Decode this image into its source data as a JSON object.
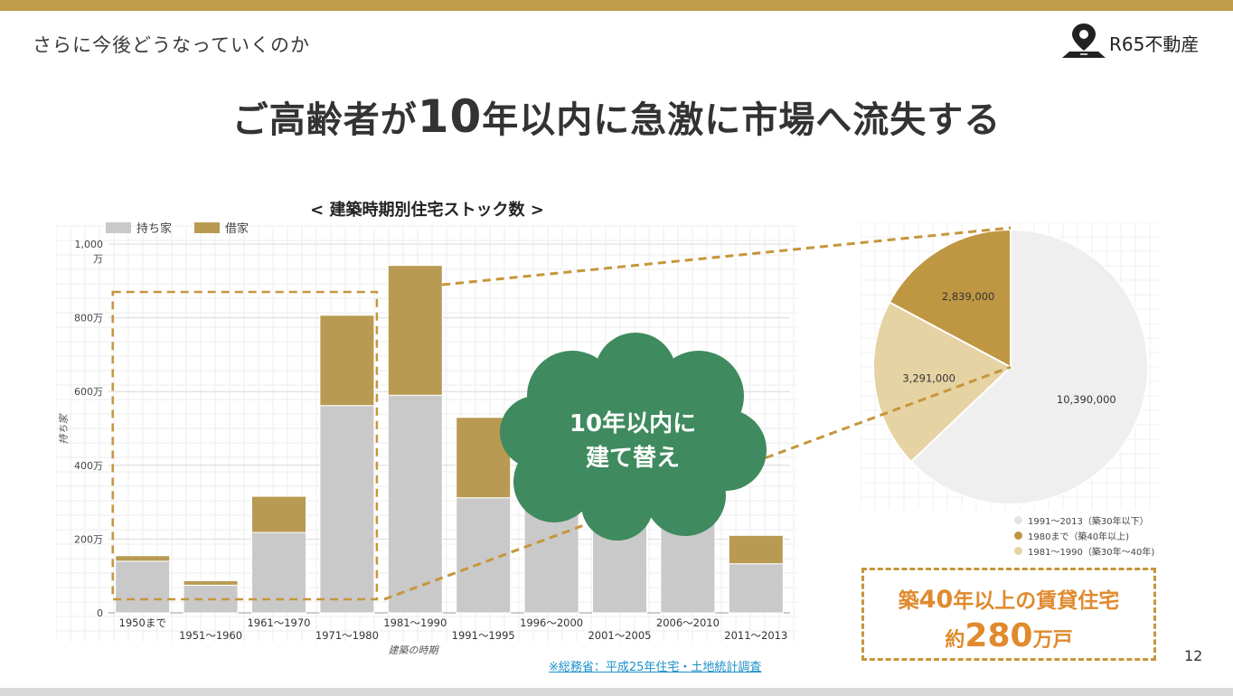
{
  "header": {
    "section_title": "さらに今後どうなっていくのか",
    "logo_text": "R65不動産"
  },
  "headline": {
    "part1": "ご高齢者が",
    "part2": "10",
    "part3": "年以内に急激に市場へ流失する"
  },
  "chart_title": "< 建築時期別住宅ストック数 >",
  "callout": {
    "line1": "10年以内に",
    "line2": "建て替え"
  },
  "stat": {
    "line1_a": "築",
    "line1_num": "40",
    "line1_b": "年以上の賃貸住宅",
    "line2_a": "約",
    "line2_num": "280",
    "line2_b": "万戸"
  },
  "source": "※総務省：平成25年住宅・土地統計調査",
  "page_number": "12",
  "colors": {
    "accent_gold": "#bf9b4a",
    "owned_gray": "#c9c9c9",
    "rented_gold": "#b89a52",
    "cloud_green": "#3f8a5e",
    "stat_orange": "#e08a2e"
  },
  "chart_data": [
    {
      "type": "bar",
      "stacked": true,
      "categories": [
        "1950まで",
        "1951～1960",
        "1961～1970",
        "1971～1980",
        "1981～1990",
        "1991～1995",
        "1996～2000",
        "2001～2005",
        "2006～2010",
        "2011～2013"
      ],
      "series": [
        {
          "name": "持ち家",
          "color": "#c9c9c9",
          "values": [
            140,
            75,
            218,
            562,
            590,
            312,
            320,
            320,
            300,
            133
          ]
        },
        {
          "name": "借家",
          "color": "#b89a52",
          "values": [
            15,
            12,
            98,
            245,
            352,
            218,
            200,
            180,
            170,
            77
          ]
        }
      ],
      "y_ticks": [
        "0",
        "200万",
        "400万",
        "600万",
        "800万",
        "1,000\n万"
      ],
      "ylim": [
        0,
        1000
      ],
      "xlabel": "建築の時期",
      "ylabel": "持ち家",
      "legend": "top-left",
      "grid": true
    },
    {
      "type": "pie",
      "slices": [
        {
          "label": "10,390,000",
          "value": 10390000,
          "legend": "1991～2013（築30年以下）",
          "color": "#efefef"
        },
        {
          "label": "3,291,000",
          "value": 3291000,
          "legend": "1981～1990（築30年～40年)",
          "color": "#e6d3a3"
        },
        {
          "label": "2,839,000",
          "value": 2839000,
          "legend": "1980まで（築40年以上)",
          "color": "#bf9642"
        }
      ],
      "legend_order": [
        0,
        2,
        1
      ],
      "legend": "bottom-right"
    }
  ]
}
